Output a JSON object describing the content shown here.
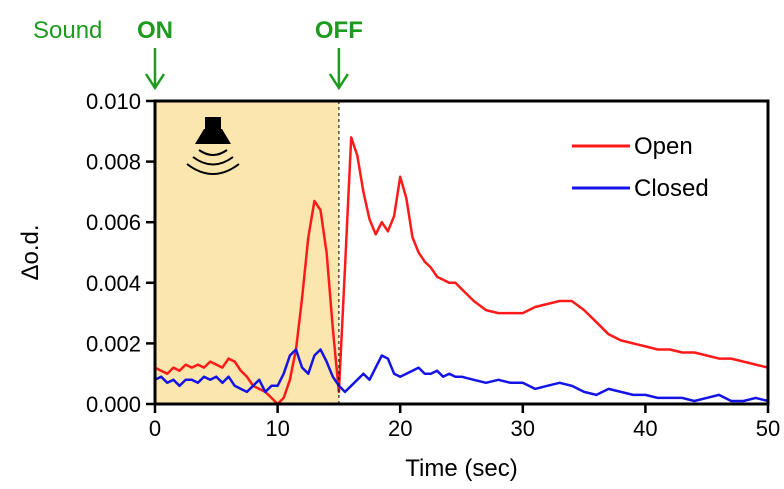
{
  "chart_data": {
    "type": "line",
    "title": "",
    "xlabel": "Time (sec)",
    "ylabel": "Δo.d.",
    "xlim": [
      0,
      50
    ],
    "ylim": [
      0.0,
      0.01
    ],
    "x_ticks": [
      0,
      10,
      20,
      30,
      40,
      50
    ],
    "x_tick_labels": [
      "0",
      "10",
      "20",
      "30",
      "40",
      "50"
    ],
    "y_ticks": [
      0.0,
      0.002,
      0.004,
      0.006,
      0.008,
      0.01
    ],
    "y_tick_labels": [
      "0.000",
      "0.002",
      "0.004",
      "0.006",
      "0.008",
      "0.010"
    ],
    "grid": false,
    "legend_position": "top-right",
    "shaded_region": {
      "x_start": 0,
      "x_end": 15,
      "color": "#fbe6ad"
    },
    "annotations": {
      "sound_label": "Sound",
      "on_label": "ON",
      "off_label": "OFF",
      "on_time": 0,
      "off_time": 15,
      "color": "#1e9a1e",
      "icon": "speaker-icon"
    },
    "series": [
      {
        "name": "Open",
        "color": "#ff1a1a",
        "x": [
          0,
          0.5,
          1,
          1.5,
          2,
          2.5,
          3,
          3.5,
          4,
          4.5,
          5,
          5.5,
          6,
          6.5,
          7,
          7.5,
          8,
          8.5,
          9,
          9.5,
          10,
          10.5,
          11,
          11.5,
          12,
          12.5,
          13,
          13.5,
          14,
          14.5,
          15,
          15.5,
          16,
          16.5,
          17,
          17.5,
          18,
          18.5,
          19,
          19.5,
          20,
          20.5,
          21,
          21.5,
          22,
          22.5,
          23,
          23.5,
          24,
          24.5,
          25,
          26,
          27,
          28,
          29,
          30,
          31,
          32,
          33,
          34,
          35,
          36,
          37,
          38,
          39,
          40,
          41,
          42,
          43,
          44,
          45,
          46,
          47,
          48,
          49,
          50
        ],
        "y": [
          0.0012,
          0.0011,
          0.001,
          0.0012,
          0.0011,
          0.0013,
          0.0012,
          0.0013,
          0.0012,
          0.0014,
          0.0013,
          0.0012,
          0.0015,
          0.0014,
          0.0011,
          0.0009,
          0.0006,
          0.0005,
          0.0004,
          0.0002,
          0.0,
          0.0002,
          0.0008,
          0.0018,
          0.0035,
          0.0055,
          0.0067,
          0.0064,
          0.005,
          0.0025,
          0.0004,
          0.0045,
          0.0088,
          0.0082,
          0.007,
          0.0061,
          0.0056,
          0.006,
          0.0057,
          0.0062,
          0.0075,
          0.0068,
          0.0055,
          0.005,
          0.0047,
          0.0045,
          0.0042,
          0.0041,
          0.004,
          0.004,
          0.0038,
          0.0034,
          0.0031,
          0.003,
          0.003,
          0.003,
          0.0032,
          0.0033,
          0.0034,
          0.0034,
          0.0031,
          0.0027,
          0.0023,
          0.0021,
          0.002,
          0.0019,
          0.0018,
          0.0018,
          0.0017,
          0.0017,
          0.0016,
          0.0015,
          0.0015,
          0.0014,
          0.0013,
          0.0012
        ]
      },
      {
        "name": "Closed",
        "color": "#1414e6",
        "x": [
          0,
          0.5,
          1,
          1.5,
          2,
          2.5,
          3,
          3.5,
          4,
          4.5,
          5,
          5.5,
          6,
          6.5,
          7,
          7.5,
          8,
          8.5,
          9,
          9.5,
          10,
          10.5,
          11,
          11.5,
          12,
          12.5,
          13,
          13.5,
          14,
          14.5,
          15,
          15.5,
          16,
          16.5,
          17,
          17.5,
          18,
          18.5,
          19,
          19.5,
          20,
          20.5,
          21,
          21.5,
          22,
          22.5,
          23,
          23.5,
          24,
          24.5,
          25,
          26,
          27,
          28,
          29,
          30,
          31,
          32,
          33,
          34,
          35,
          36,
          37,
          38,
          39,
          40,
          41,
          42,
          43,
          44,
          45,
          46,
          47,
          48,
          49,
          50
        ],
        "y": [
          0.0008,
          0.0009,
          0.0007,
          0.0008,
          0.0006,
          0.0008,
          0.0008,
          0.0007,
          0.0009,
          0.0008,
          0.0009,
          0.0007,
          0.0009,
          0.0006,
          0.0005,
          0.0004,
          0.0006,
          0.0008,
          0.0004,
          0.0006,
          0.0006,
          0.001,
          0.0016,
          0.0018,
          0.0012,
          0.001,
          0.0016,
          0.0018,
          0.0014,
          0.0009,
          0.0006,
          0.0004,
          0.0006,
          0.0008,
          0.001,
          0.0008,
          0.0012,
          0.0016,
          0.0015,
          0.001,
          0.0009,
          0.001,
          0.0011,
          0.0012,
          0.001,
          0.001,
          0.0011,
          0.0009,
          0.001,
          0.0009,
          0.0009,
          0.0008,
          0.0007,
          0.0008,
          0.0007,
          0.0007,
          0.0005,
          0.0006,
          0.0007,
          0.0006,
          0.0004,
          0.0003,
          0.0005,
          0.0004,
          0.0003,
          0.0003,
          0.0002,
          0.0002,
          0.0002,
          0.0001,
          0.0002,
          0.0003,
          0.0001,
          0.0001,
          0.0002,
          0.0001
        ]
      }
    ]
  }
}
